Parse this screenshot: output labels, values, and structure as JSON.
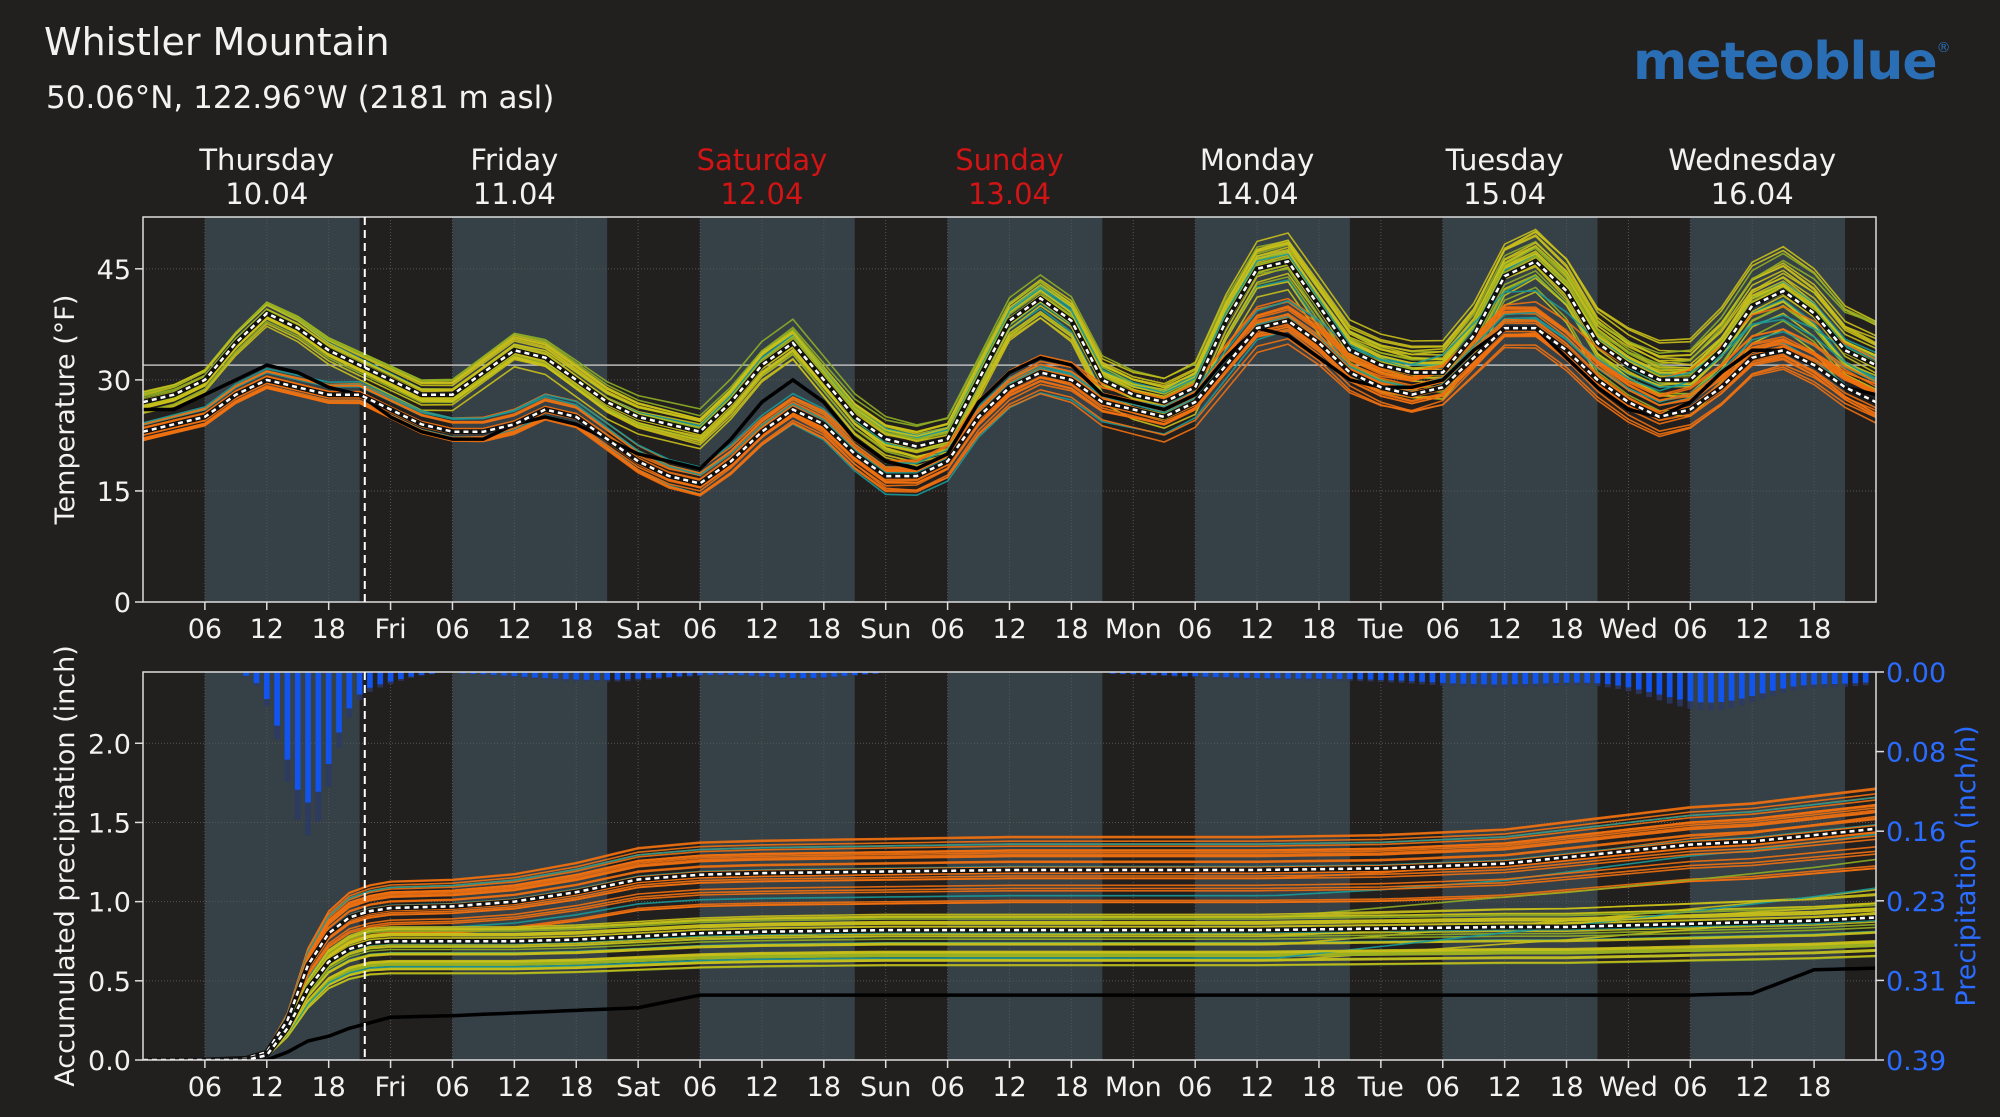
{
  "header": {
    "title": "Whistler Mountain",
    "subtitle": "50.06°N, 122.96°W (2181 m asl)",
    "logo": "meteoblue",
    "logo_mark": "®"
  },
  "colors": {
    "background": "#221f1f",
    "day_band": "#354047",
    "weekend_label": "#d11414",
    "precip_bar": "#1155ee",
    "ensemble_orange": "#f07010",
    "ensemble_yellow": "#c9c01a",
    "ensemble_green": "#8fae24",
    "ensemble_teal": "#199a98",
    "observed": "#000000"
  },
  "chart_data": [
    {
      "type": "line",
      "description_label": "temperature-ensemble",
      "day_labels": [
        {
          "name": "Thursday",
          "date": "10.04",
          "weekend": false
        },
        {
          "name": "Friday",
          "date": "11.04",
          "weekend": false
        },
        {
          "name": "Saturday",
          "date": "12.04",
          "weekend": true
        },
        {
          "name": "Sunday",
          "date": "13.04",
          "weekend": true
        },
        {
          "name": "Monday",
          "date": "14.04",
          "weekend": false
        },
        {
          "name": "Tuesday",
          "date": "15.04",
          "weekend": false
        },
        {
          "name": "Wednesday",
          "date": "16.04",
          "weekend": false
        }
      ],
      "x_tick_labels": [
        "06",
        "12",
        "18",
        "Fri",
        "06",
        "12",
        "18",
        "Sat",
        "06",
        "12",
        "18",
        "Sun",
        "06",
        "12",
        "18",
        "Mon",
        "06",
        "12",
        "18",
        "Tue",
        "06",
        "12",
        "18",
        "Wed",
        "06",
        "12",
        "18"
      ],
      "x_hours_range": [
        0,
        168
      ],
      "ylabel": "Temperature (°F)",
      "ylim": [
        0,
        52
      ],
      "yticks": [
        0,
        15,
        30,
        45
      ],
      "grid": true,
      "reference_line_y": 32,
      "now_marker_hour": 21.5,
      "series": [
        {
          "role": "upper-median",
          "x": [
            0,
            3,
            6,
            9,
            12,
            15,
            18,
            21,
            24,
            27,
            30,
            33,
            36,
            39,
            42,
            45,
            48,
            51,
            54,
            57,
            60,
            63,
            66,
            69,
            72,
            75,
            78,
            81,
            84,
            87,
            90,
            93,
            96,
            99,
            102,
            105,
            108,
            111,
            114,
            117,
            120,
            123,
            126,
            129,
            132,
            135,
            138,
            141,
            144,
            147,
            150,
            153,
            156,
            159,
            162,
            165,
            168
          ],
          "values": [
            27,
            28,
            30,
            35,
            39,
            37,
            34,
            32,
            30,
            28,
            28,
            31,
            34,
            33,
            30,
            27,
            25,
            24,
            23,
            27,
            32,
            35,
            30,
            25,
            22,
            21,
            22,
            30,
            38,
            41,
            38,
            30,
            28,
            27,
            29,
            38,
            45,
            46,
            40,
            34,
            32,
            31,
            31,
            36,
            44,
            46,
            42,
            35,
            32,
            30,
            30,
            34,
            40,
            42,
            39,
            34,
            32
          ]
        },
        {
          "role": "lower-median",
          "x": [
            0,
            3,
            6,
            9,
            12,
            15,
            18,
            21,
            24,
            27,
            30,
            33,
            36,
            39,
            42,
            45,
            48,
            51,
            54,
            57,
            60,
            63,
            66,
            69,
            72,
            75,
            78,
            81,
            84,
            87,
            90,
            93,
            96,
            99,
            102,
            105,
            108,
            111,
            114,
            117,
            120,
            123,
            126,
            129,
            132,
            135,
            138,
            141,
            144,
            147,
            150,
            153,
            156,
            159,
            162,
            165,
            168
          ],
          "values": [
            23,
            24,
            25,
            28,
            30,
            29,
            28,
            28,
            26,
            24,
            23,
            23,
            24,
            26,
            25,
            22,
            19,
            17,
            16,
            19,
            23,
            26,
            24,
            20,
            17,
            17,
            19,
            25,
            29,
            31,
            30,
            27,
            26,
            25,
            27,
            32,
            37,
            38,
            35,
            31,
            29,
            28,
            29,
            33,
            37,
            37,
            34,
            30,
            27,
            25,
            26,
            29,
            33,
            34,
            32,
            29,
            27
          ]
        },
        {
          "role": "observed",
          "x": [
            0,
            3,
            6,
            9,
            12,
            15,
            18,
            21,
            24,
            27,
            30,
            33,
            36,
            39,
            42,
            45,
            48,
            51,
            54,
            57,
            60,
            63,
            66,
            69,
            72,
            75,
            78,
            81,
            84,
            87,
            90,
            93,
            96,
            99,
            102,
            105,
            108,
            111,
            114,
            117,
            120,
            123,
            126,
            129,
            132,
            135,
            138,
            141,
            144,
            147,
            150,
            153,
            156,
            159,
            162,
            165,
            168
          ],
          "values": [
            26,
            26,
            28,
            30,
            32,
            31,
            29,
            28,
            25,
            23,
            22,
            22,
            24,
            25,
            24,
            22,
            20,
            19,
            18,
            22,
            27,
            30,
            27,
            22,
            19,
            18,
            20,
            27,
            31,
            33,
            32,
            28,
            27,
            26,
            28,
            33,
            37,
            36,
            33,
            30,
            29,
            29,
            30,
            34,
            37,
            37,
            33,
            29,
            26,
            25,
            27,
            31,
            34,
            34,
            32,
            29,
            28
          ]
        }
      ]
    },
    {
      "type": "line",
      "description_label": "precipitation-ensemble",
      "x_tick_labels": [
        "06",
        "12",
        "18",
        "Fri",
        "06",
        "12",
        "18",
        "Sat",
        "06",
        "12",
        "18",
        "Sun",
        "06",
        "12",
        "18",
        "Mon",
        "06",
        "12",
        "18",
        "Tue",
        "06",
        "12",
        "18",
        "Wed",
        "06",
        "12",
        "18"
      ],
      "x_hours_range": [
        0,
        168
      ],
      "ylabel": "Accumulated precipitation (inch)",
      "ylim": [
        0,
        2.45
      ],
      "yticks": [
        "0.0",
        "0.5",
        "1.0",
        "1.5",
        "2.0"
      ],
      "y2label": "Precipitation (inch/h)",
      "y2lim": [
        0,
        0.39
      ],
      "y2ticks": [
        "0.00",
        "0.08",
        "0.16",
        "0.23",
        "0.31",
        "0.39"
      ],
      "y2_inverted": true,
      "grid": true,
      "series": [
        {
          "role": "upper-median",
          "x": [
            0,
            6,
            10,
            12,
            14,
            16,
            18,
            20,
            22,
            24,
            30,
            36,
            42,
            48,
            54,
            60,
            72,
            84,
            96,
            108,
            120,
            132,
            138,
            144,
            150,
            156,
            162,
            168
          ],
          "values": [
            0,
            0,
            0.01,
            0.05,
            0.25,
            0.6,
            0.8,
            0.9,
            0.94,
            0.96,
            0.97,
            1.0,
            1.06,
            1.14,
            1.17,
            1.18,
            1.19,
            1.2,
            1.2,
            1.2,
            1.21,
            1.24,
            1.28,
            1.32,
            1.36,
            1.38,
            1.42,
            1.46
          ]
        },
        {
          "role": "lower-median",
          "x": [
            0,
            6,
            10,
            12,
            14,
            16,
            18,
            20,
            22,
            24,
            30,
            36,
            42,
            48,
            54,
            60,
            72,
            84,
            96,
            108,
            120,
            132,
            138,
            144,
            150,
            156,
            162,
            168
          ],
          "values": [
            0,
            0,
            0,
            0.03,
            0.2,
            0.45,
            0.62,
            0.7,
            0.74,
            0.75,
            0.75,
            0.75,
            0.76,
            0.78,
            0.8,
            0.81,
            0.82,
            0.82,
            0.82,
            0.82,
            0.83,
            0.84,
            0.84,
            0.85,
            0.86,
            0.87,
            0.88,
            0.9
          ]
        },
        {
          "role": "observed",
          "x": [
            0,
            12,
            14,
            16,
            18,
            20,
            24,
            30,
            48,
            54,
            60,
            72,
            96,
            120,
            150,
            156,
            162,
            168
          ],
          "values": [
            0,
            0,
            0.05,
            0.12,
            0.15,
            0.2,
            0.27,
            0.28,
            0.33,
            0.41,
            0.41,
            0.41,
            0.41,
            0.41,
            0.41,
            0.42,
            0.57,
            0.58
          ]
        }
      ],
      "hourly_precipitation_peak": {
        "hour": 16,
        "value": 0.13
      }
    }
  ]
}
